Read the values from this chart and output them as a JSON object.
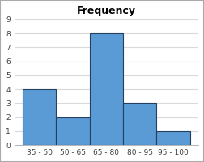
{
  "categories": [
    "35 - 50",
    "50 - 65",
    "65 - 80",
    "80 - 95",
    "95 - 100"
  ],
  "values": [
    4,
    2,
    8,
    3,
    1
  ],
  "bar_color": "#5B9BD5",
  "bar_edgecolor": "#243F60",
  "title": "Frequency",
  "title_fontsize": 9,
  "ylim": [
    0,
    9
  ],
  "yticks": [
    0,
    1,
    2,
    3,
    4,
    5,
    6,
    7,
    8,
    9
  ],
  "grid_color": "#D9D9D9",
  "plot_background": "#FFFFFF",
  "figure_background": "#FFFFFF",
  "outer_border_color": "#AAAAAA",
  "tick_fontsize": 6.5,
  "bar_width": 1.0,
  "title_fontweight": "bold"
}
